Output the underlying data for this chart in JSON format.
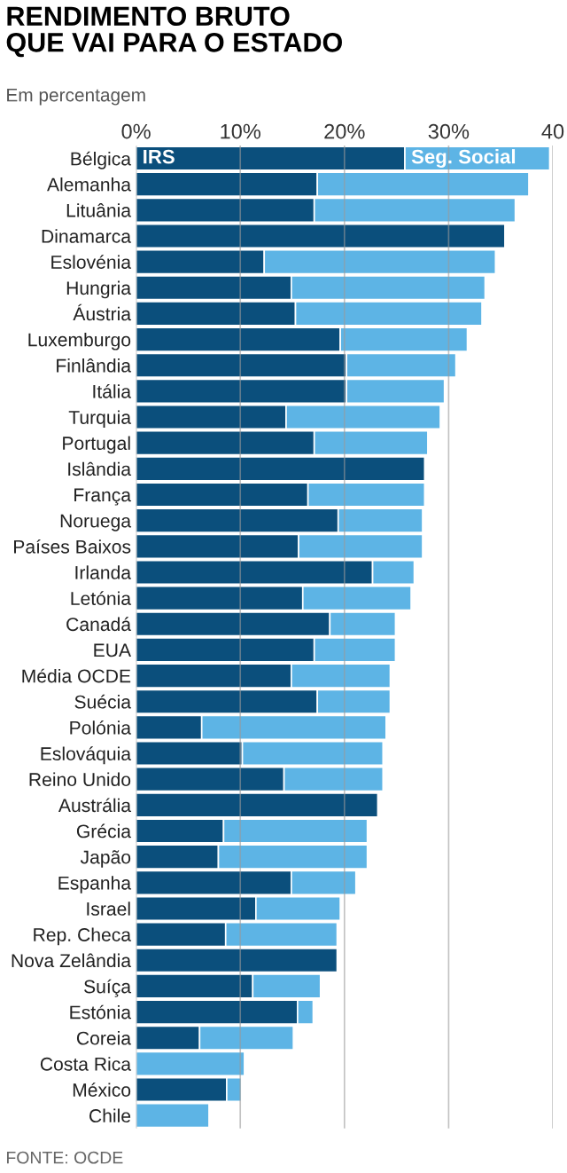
{
  "chart_data": {
    "type": "bar",
    "title": "RENDIMENTO BRUTO\nQUE VAI PARA O ESTADO",
    "subtitle": "Em percentagem",
    "annotations": [
      "FONTE: OCDE"
    ],
    "orientation": "horizontal",
    "stacked": true,
    "categories": [
      "Bélgica",
      "Alemanha",
      "Lituânia",
      "Dinamarca",
      "Eslovénia",
      "Hungria",
      "Áustria",
      "Luxemburgo",
      "Finlândia",
      "Itália",
      "Turquia",
      "Portugal",
      "Islândia",
      "França",
      "Noruega",
      "Países Baixos",
      "Irlanda",
      "Letónia",
      "Canadá",
      "EUA",
      "Média OCDE",
      "Suécia",
      "Polónia",
      "Eslováquia",
      "Reino Unido",
      "Austrália",
      "Grécia",
      "Japão",
      "Espanha",
      "Israel",
      "Rep. Checa",
      "Nova Zelândia",
      "Suíça",
      "Estónia",
      "Coreia",
      "Costa Rica",
      "México",
      "Chile"
    ],
    "series": [
      {
        "name": "IRS",
        "color": "#0b4f7c",
        "values": [
          25.8,
          17.4,
          17.1,
          35.4,
          12.3,
          14.9,
          15.3,
          19.6,
          20.2,
          20.2,
          14.4,
          17.1,
          27.7,
          16.5,
          19.4,
          15.6,
          22.7,
          16.0,
          18.6,
          17.1,
          14.9,
          17.4,
          6.3,
          10.2,
          14.2,
          23.2,
          8.4,
          7.9,
          14.9,
          11.5,
          8.6,
          19.3,
          11.2,
          15.5,
          6.1,
          0,
          8.7,
          0
        ]
      },
      {
        "name": "Seg. Social",
        "color": "#5db4e5",
        "values": [
          13.9,
          20.3,
          19.3,
          0,
          22.2,
          18.6,
          17.9,
          12.2,
          10.5,
          9.4,
          14.8,
          10.9,
          0,
          11.2,
          8.1,
          11.9,
          4.0,
          10.4,
          6.3,
          7.8,
          9.5,
          7.0,
          17.7,
          13.5,
          9.5,
          0,
          13.8,
          14.3,
          6.2,
          8.1,
          10.7,
          0,
          6.5,
          1.5,
          9.0,
          10.4,
          1.4,
          7.0
        ]
      }
    ],
    "xlim": [
      0,
      40
    ],
    "xticks": [
      {
        "value": 0,
        "label": "0%"
      },
      {
        "value": 10,
        "label": "10%"
      },
      {
        "value": 20,
        "label": "20%"
      },
      {
        "value": 30,
        "label": "30%"
      },
      {
        "value": 40,
        "label": "40"
      }
    ],
    "grid": "x",
    "legend": false
  }
}
